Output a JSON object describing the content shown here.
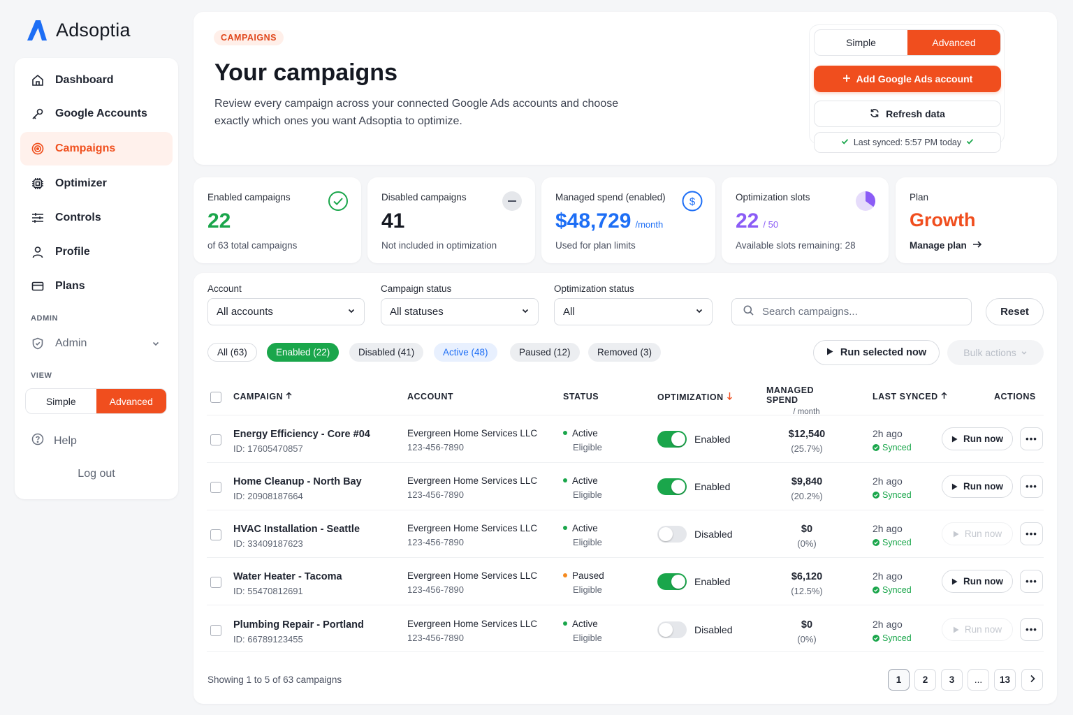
{
  "app": {
    "name": "Adsoptia"
  },
  "sidebar": {
    "items": [
      {
        "label": "Dashboard",
        "icon": "home-icon"
      },
      {
        "label": "Google Accounts",
        "icon": "key-icon"
      },
      {
        "label": "Campaigns",
        "icon": "target-icon",
        "active": true
      },
      {
        "label": "Optimizer",
        "icon": "chip-icon"
      },
      {
        "label": "Controls",
        "icon": "sliders-icon"
      },
      {
        "label": "Profile",
        "icon": "user-icon"
      },
      {
        "label": "Plans",
        "icon": "card-icon"
      }
    ],
    "admin_section": "ADMIN",
    "admin_label": "Admin",
    "view_section": "VIEW",
    "view_simple": "Simple",
    "view_advanced": "Advanced",
    "help": "Help",
    "logout": "Log out"
  },
  "hero": {
    "eyebrow": "CAMPAIGNS",
    "title": "Your campaigns",
    "description": "Review every campaign across your connected Google Ads accounts and choose exactly which ones you want Adsoptia to optimize.",
    "mode_simple": "Simple",
    "mode_advanced": "Advanced",
    "add_account": "Add Google Ads account",
    "refresh": "Refresh data",
    "last_synced": "Last synced: 5:57 PM today"
  },
  "stats": [
    {
      "label": "Enabled campaigns",
      "value": "22",
      "sub": "of 63 total campaigns"
    },
    {
      "label": "Disabled campaigns",
      "value": "41",
      "sub": "Not included in optimization"
    },
    {
      "label": "Managed spend (enabled)",
      "value": "$48,729",
      "unit": "/month",
      "sub": "Used for plan limits"
    },
    {
      "label": "Optimization slots",
      "value": "22",
      "unit": "/ 50",
      "sub": "Available slots remaining: 28"
    },
    {
      "label": "Plan",
      "value": "Growth",
      "sub": "Manage plan"
    }
  ],
  "filters": {
    "account_label": "Account",
    "account_value": "All accounts",
    "status_label": "Campaign status",
    "status_value": "All statuses",
    "opt_label": "Optimization status",
    "opt_value": "All",
    "search_placeholder": "Search campaigns...",
    "reset": "Reset",
    "chips": [
      "All (63)",
      "Enabled (22)",
      "Disabled (41)",
      "Active (48)",
      "Paused (12)",
      "Removed (3)"
    ],
    "run_selected": "Run selected now",
    "bulk_actions": "Bulk actions"
  },
  "table": {
    "headers": {
      "campaign": "CAMPAIGN",
      "account": "ACCOUNT",
      "status": "STATUS",
      "optimization": "OPTIMIZATION",
      "spend": "MANAGED SPEND",
      "spend_sub": "/ month",
      "last_synced": "LAST SYNCED",
      "actions": "ACTIONS"
    },
    "rows": [
      {
        "name": "Energy Efficiency - Core #04",
        "id": "ID: 17605470857",
        "account": "Evergreen Home Services LLC",
        "account_id": "123-456-7890",
        "status": "Active",
        "eligibility": "Eligible",
        "opt": "Enabled",
        "spend": "$12,540",
        "pct": "(25.7%)",
        "synced": "2h ago",
        "synced_state": "Synced",
        "run": "Run now"
      },
      {
        "name": "Home Cleanup - North Bay",
        "id": "ID: 20908187664",
        "account": "Evergreen Home Services LLC",
        "account_id": "123-456-7890",
        "status": "Active",
        "eligibility": "Eligible",
        "opt": "Enabled",
        "spend": "$9,840",
        "pct": "(20.2%)",
        "synced": "2h ago",
        "synced_state": "Synced",
        "run": "Run now"
      },
      {
        "name": "HVAC Installation - Seattle",
        "id": "ID: 33409187623",
        "account": "Evergreen Home Services LLC",
        "account_id": "123-456-7890",
        "status": "Active",
        "eligibility": "Eligible",
        "opt": "Disabled",
        "spend": "$0",
        "pct": "(0%)",
        "synced": "2h ago",
        "synced_state": "Synced",
        "run": "Run now"
      },
      {
        "name": "Water Heater - Tacoma",
        "id": "ID: 55470812691",
        "account": "Evergreen Home Services LLC",
        "account_id": "123-456-7890",
        "status": "Paused",
        "eligibility": "Eligible",
        "opt": "Enabled",
        "spend": "$6,120",
        "pct": "(12.5%)",
        "synced": "2h ago",
        "synced_state": "Synced",
        "run": "Run now"
      },
      {
        "name": "Plumbing Repair - Portland",
        "id": "ID: 66789123455",
        "account": "Evergreen Home Services LLC",
        "account_id": "123-456-7890",
        "status": "Active",
        "eligibility": "Eligible",
        "opt": "Disabled",
        "spend": "$0",
        "pct": "(0%)",
        "synced": "2h ago",
        "synced_state": "Synced",
        "run": "Run now"
      }
    ]
  },
  "pagination": {
    "showing": "Showing 1 to 5 of 63 campaigns",
    "pages": [
      "1",
      "2",
      "3",
      "...",
      "13"
    ]
  },
  "colors": {
    "accent": "#f04e1e",
    "success": "#1aa64b",
    "brand_blue": "#1d6ef5",
    "purple": "#8b5cf6",
    "paused": "#f58a1f"
  }
}
